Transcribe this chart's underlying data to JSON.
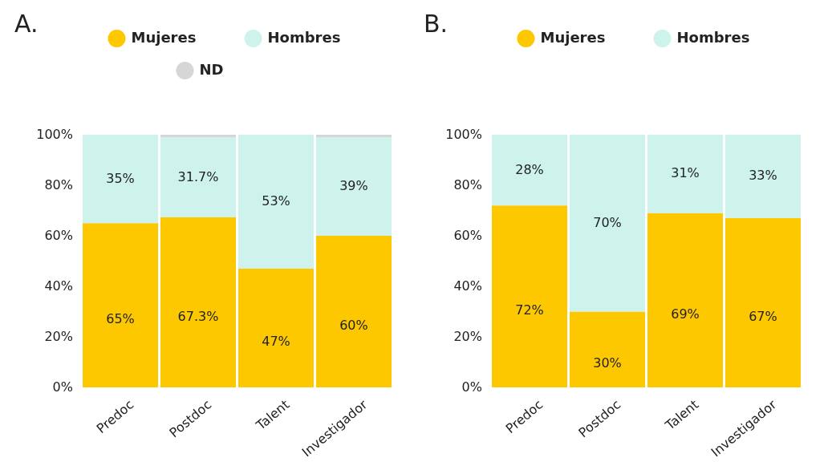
{
  "chart_data": [
    {
      "type": "bar",
      "title": "A.",
      "categories": [
        "Predoc",
        "Postdoc",
        "Talent",
        "Investigador"
      ],
      "stacked": true,
      "legend": "top",
      "grid": false,
      "ylim": [
        0,
        100
      ],
      "yticks": [
        {
          "value": 0,
          "label": "0%"
        },
        {
          "value": 20,
          "label": "20%"
        },
        {
          "value": 40,
          "label": "40%"
        },
        {
          "value": 60,
          "label": "60%"
        },
        {
          "value": 80,
          "label": "80%"
        },
        {
          "value": 100,
          "label": "100%"
        }
      ],
      "series": [
        {
          "name": "Mujeres",
          "color": "#fdc800",
          "values": [
            65,
            67.3,
            47,
            60
          ],
          "value_labels": [
            "65%",
            "67.3%",
            "47%",
            "60%"
          ]
        },
        {
          "name": "Hombres",
          "color": "#cdf3ec",
          "values": [
            35,
            31.7,
            53,
            39
          ],
          "value_labels": [
            "35%",
            "31.7%",
            "53%",
            "39%"
          ]
        },
        {
          "name": "ND",
          "color": "#d6d6d6",
          "values": [
            0,
            1,
            0,
            1
          ]
        }
      ]
    },
    {
      "type": "bar",
      "title": "B.",
      "categories": [
        "Predoc",
        "Postdoc",
        "Talent",
        "Investigador"
      ],
      "stacked": true,
      "legend": "top",
      "grid": false,
      "ylim": [
        0,
        100
      ],
      "yticks": [
        {
          "value": 0,
          "label": "0%"
        },
        {
          "value": 20,
          "label": "20%"
        },
        {
          "value": 40,
          "label": "40%"
        },
        {
          "value": 60,
          "label": "60%"
        },
        {
          "value": 80,
          "label": "80%"
        },
        {
          "value": 100,
          "label": "100%"
        }
      ],
      "series": [
        {
          "name": "Mujeres",
          "color": "#fdc800",
          "values": [
            72,
            30,
            69,
            67
          ],
          "value_labels": [
            "72%",
            "30%",
            "69%",
            "67%"
          ]
        },
        {
          "name": "Hombres",
          "color": "#cdf3ec",
          "values": [
            28,
            70,
            31,
            33
          ],
          "value_labels": [
            "28%",
            "70%",
            "31%",
            "33%"
          ]
        }
      ]
    }
  ]
}
